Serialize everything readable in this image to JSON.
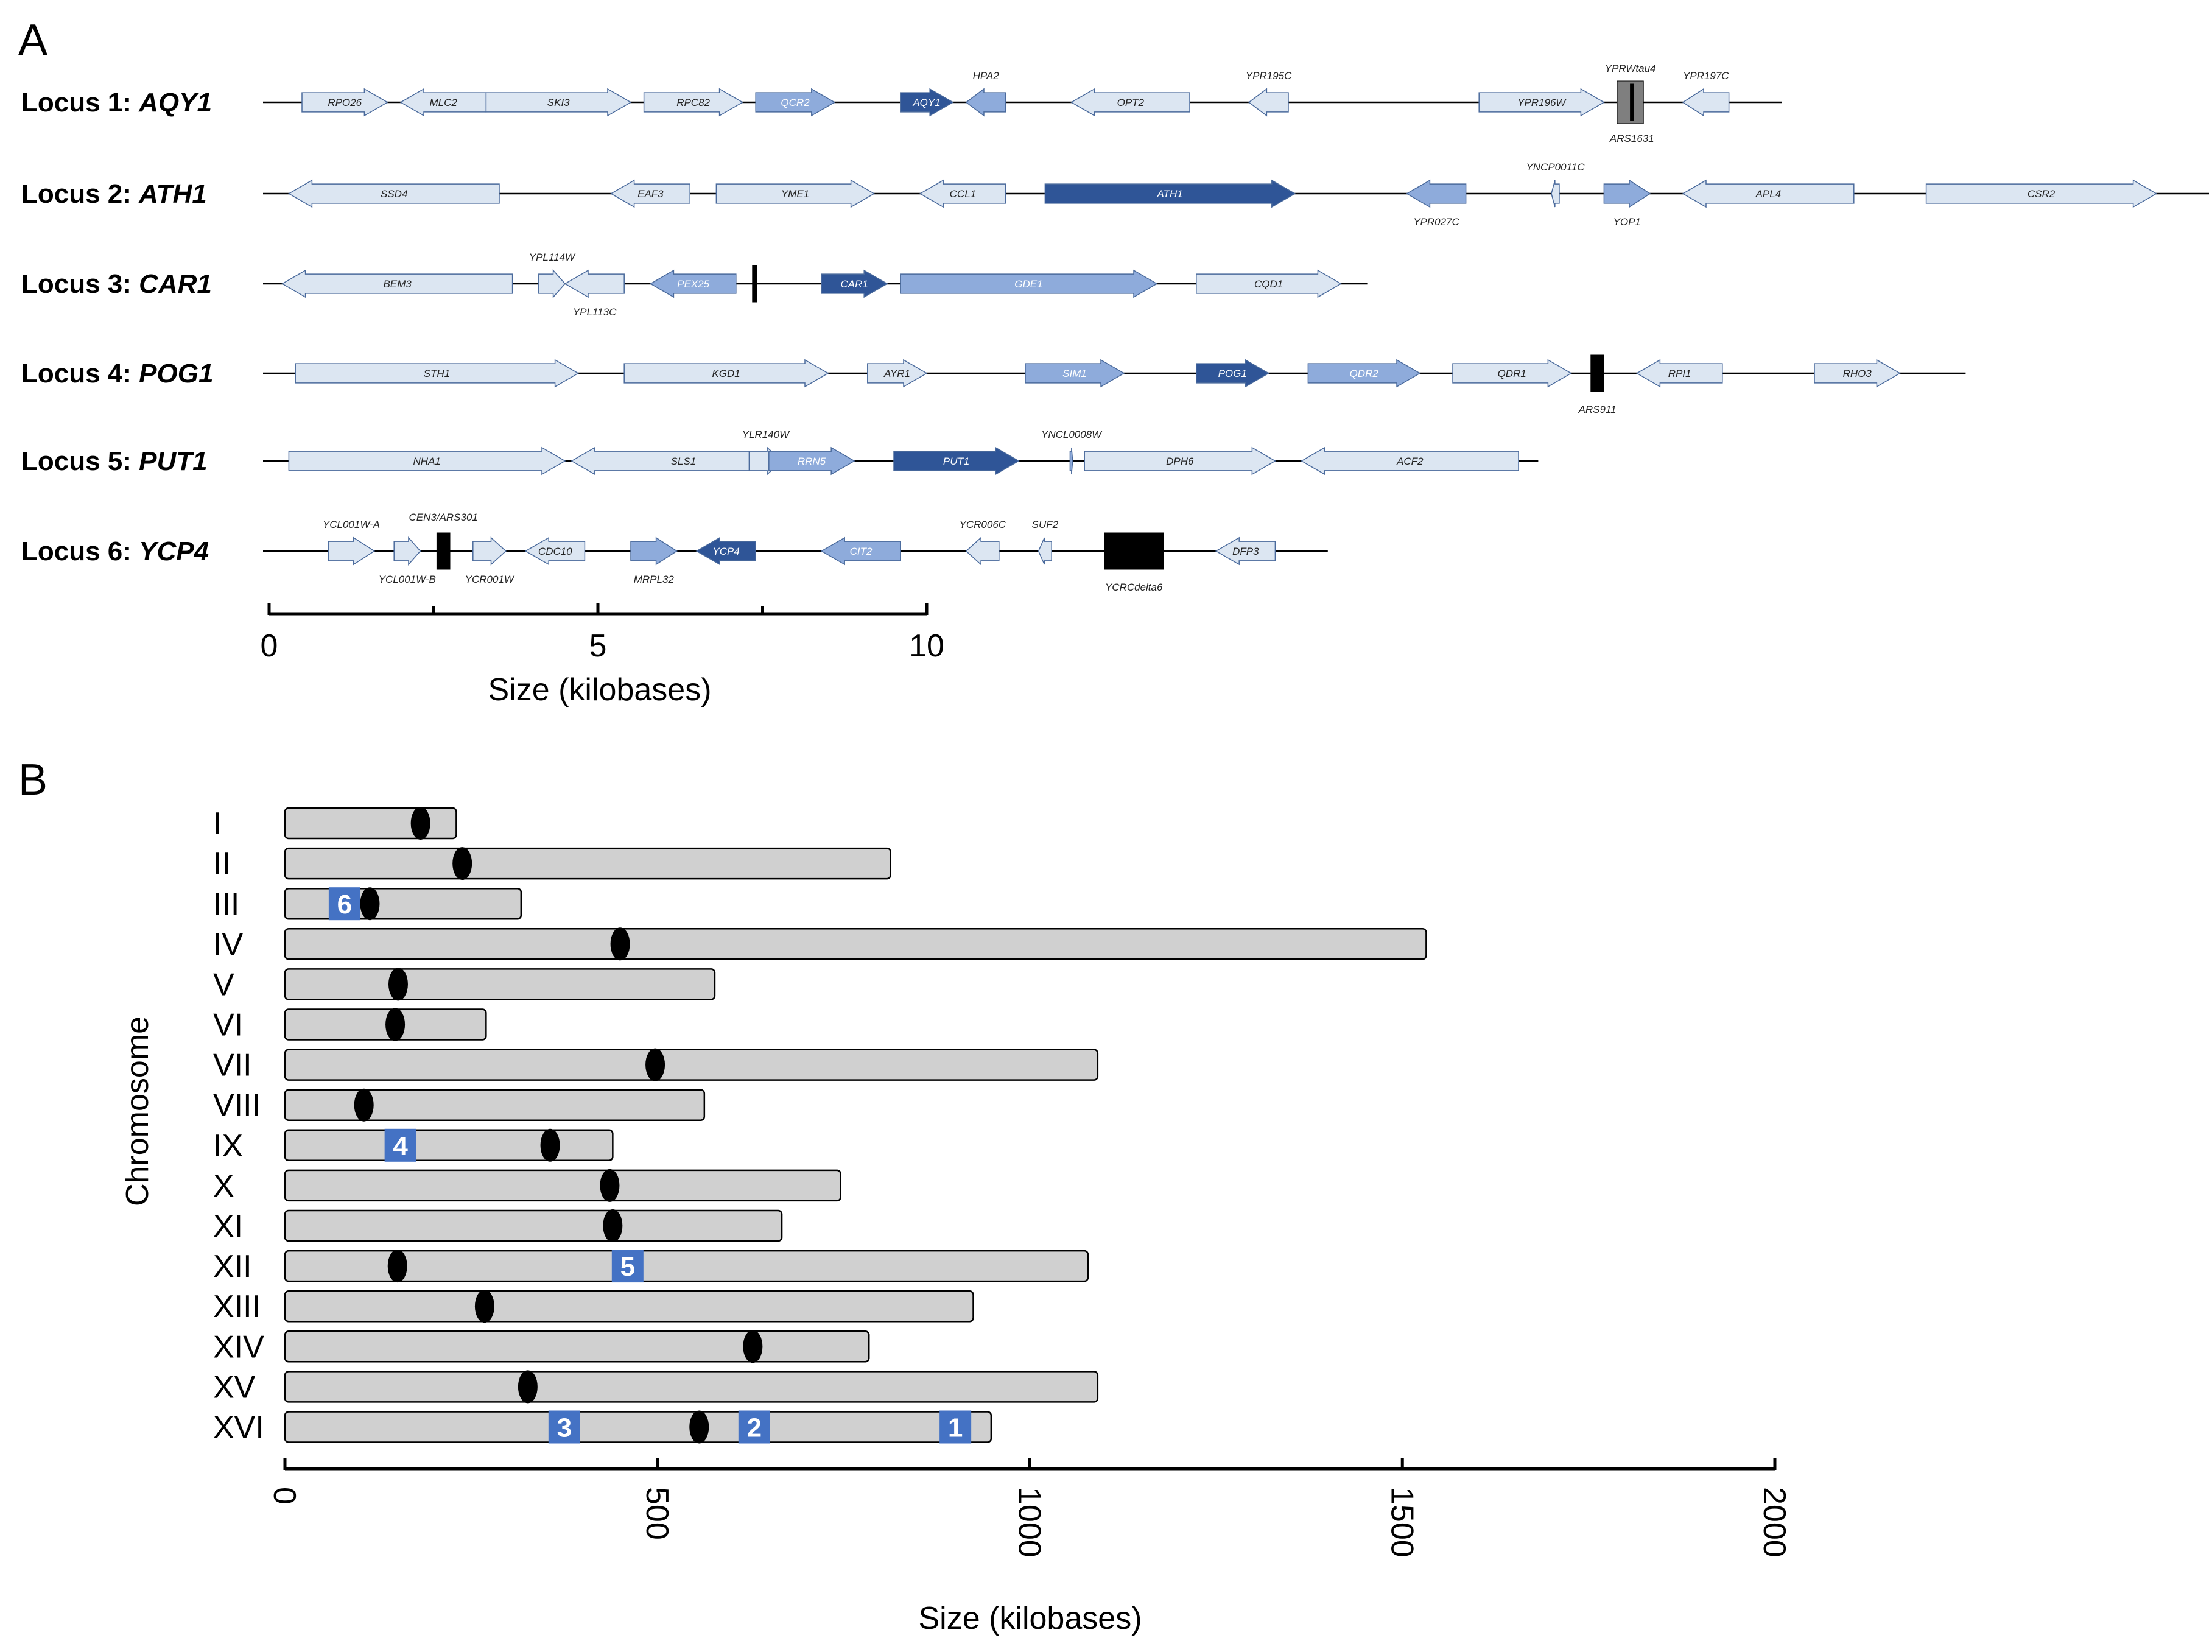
{
  "panel_a": {
    "label": "A",
    "colors": {
      "light": "#dce6f2",
      "mid": "#8eabdb",
      "dark": "#2f5597",
      "black": "#000000",
      "gray": "#7f7f7f"
    },
    "loci": [
      {
        "id": "l1",
        "prefix": "Locus 1: ",
        "gene": "AQY1",
        "len": 23.0,
        "genes": [
          {
            "name": "RPO26",
            "s": 0.5,
            "e": 1.8,
            "dir": "r",
            "c": "light",
            "lp": "in"
          },
          {
            "name": "MLC2",
            "s": 2.0,
            "e": 3.3,
            "dir": "l",
            "c": "light",
            "lp": "in"
          },
          {
            "name": "SKI3",
            "s": 3.3,
            "e": 5.5,
            "dir": "r",
            "c": "light",
            "lp": "in"
          },
          {
            "name": "RPC82",
            "s": 5.7,
            "e": 7.2,
            "dir": "r",
            "c": "light",
            "lp": "in"
          },
          {
            "name": "QCR2",
            "s": 7.4,
            "e": 8.6,
            "dir": "r",
            "c": "mid",
            "lp": "in"
          },
          {
            "name": "AQY1",
            "s": 9.6,
            "e": 10.4,
            "dir": "r",
            "c": "dark",
            "lp": "in"
          },
          {
            "name": "HPA2",
            "s": 10.6,
            "e": 11.2,
            "dir": "l",
            "c": "mid",
            "lp": "above"
          },
          {
            "name": "OPT2",
            "s": 12.2,
            "e": 14.0,
            "dir": "l",
            "c": "light",
            "lp": "in"
          },
          {
            "name": "YPR195C",
            "s": 14.9,
            "e": 15.5,
            "dir": "l",
            "c": "light",
            "lp": "above"
          },
          {
            "name": "YPR196W",
            "s": 18.4,
            "e": 20.3,
            "dir": "r",
            "c": "light",
            "lp": "in"
          },
          {
            "name": "YPR197C",
            "s": 21.5,
            "e": 22.2,
            "dir": "l",
            "c": "light",
            "lp": "above"
          }
        ],
        "features": [
          {
            "name": "YPRWtau4",
            "s": 20.5,
            "e": 20.9,
            "c": "gray",
            "lp": "above"
          },
          {
            "name": "ARS1631",
            "s": 20.7,
            "e": 20.75,
            "c": "black",
            "lp": "below"
          }
        ]
      },
      {
        "id": "l2",
        "prefix": "Locus 2: ",
        "gene": "ATH1",
        "len": 29.5,
        "genes": [
          {
            "name": "SSD4",
            "s": 0.3,
            "e": 3.5,
            "dir": "l",
            "c": "light",
            "lp": "in"
          },
          {
            "name": "EAF3",
            "s": 5.2,
            "e": 6.4,
            "dir": "l",
            "c": "light",
            "lp": "in"
          },
          {
            "name": "YME1",
            "s": 6.8,
            "e": 9.2,
            "dir": "r",
            "c": "light",
            "lp": "in"
          },
          {
            "name": "CCL1",
            "s": 9.9,
            "e": 11.2,
            "dir": "l",
            "c": "light",
            "lp": "in"
          },
          {
            "name": "ATH1",
            "s": 11.8,
            "e": 15.6,
            "dir": "r",
            "c": "dark",
            "lp": "in"
          },
          {
            "name": "YPR027C",
            "s": 17.3,
            "e": 18.2,
            "dir": "l",
            "c": "mid",
            "lp": "below"
          },
          {
            "name": "YNCP0011C",
            "s": 19.5,
            "e": 19.62,
            "dir": "l",
            "c": "light",
            "lp": "above"
          },
          {
            "name": "YOP1",
            "s": 20.3,
            "e": 21.0,
            "dir": "r",
            "c": "mid",
            "lp": "below"
          },
          {
            "name": "APL4",
            "s": 21.5,
            "e": 24.1,
            "dir": "l",
            "c": "light",
            "lp": "in"
          },
          {
            "name": "CSR2",
            "s": 25.2,
            "e": 28.7,
            "dir": "r",
            "c": "light",
            "lp": "in"
          }
        ],
        "features": []
      },
      {
        "id": "l3",
        "prefix": "Locus 3: ",
        "gene": "CAR1",
        "len": 16.7,
        "genes": [
          {
            "name": "BEM3",
            "s": 0.2,
            "e": 3.7,
            "dir": "l",
            "c": "light",
            "lp": "in"
          },
          {
            "name": "YPL114W",
            "s": 4.1,
            "e": 4.5,
            "dir": "r",
            "c": "light",
            "lp": "above"
          },
          {
            "name": "YPL113C",
            "s": 4.5,
            "e": 5.4,
            "dir": "l",
            "c": "light",
            "lp": "below"
          },
          {
            "name": "PEX25",
            "s": 5.8,
            "e": 7.1,
            "dir": "l",
            "c": "mid",
            "lp": "in"
          },
          {
            "name": "CAR1",
            "s": 8.4,
            "e": 9.4,
            "dir": "r",
            "c": "dark",
            "lp": "in"
          },
          {
            "name": "GDE1",
            "s": 9.6,
            "e": 13.5,
            "dir": "r",
            "c": "mid",
            "lp": "in"
          },
          {
            "name": "CQD1",
            "s": 14.1,
            "e": 16.3,
            "dir": "r",
            "c": "light",
            "lp": "in"
          }
        ],
        "features": [
          {
            "name": "",
            "s": 7.35,
            "e": 7.42,
            "c": "black",
            "lp": "none"
          }
        ]
      },
      {
        "id": "l4",
        "prefix": "Locus 4: ",
        "gene": "POG1",
        "len": 25.8,
        "genes": [
          {
            "name": "STH1",
            "s": 0.4,
            "e": 4.7,
            "dir": "r",
            "c": "light",
            "lp": "in"
          },
          {
            "name": "KGD1",
            "s": 5.4,
            "e": 8.5,
            "dir": "r",
            "c": "light",
            "lp": "in"
          },
          {
            "name": "AYR1",
            "s": 9.1,
            "e": 10.0,
            "dir": "r",
            "c": "light",
            "lp": "in"
          },
          {
            "name": "SIM1",
            "s": 11.5,
            "e": 13.0,
            "dir": "r",
            "c": "mid",
            "lp": "in"
          },
          {
            "name": "POG1",
            "s": 14.1,
            "e": 15.2,
            "dir": "r",
            "c": "dark",
            "lp": "in"
          },
          {
            "name": "QDR2",
            "s": 15.8,
            "e": 17.5,
            "dir": "r",
            "c": "mid",
            "lp": "in"
          },
          {
            "name": "QDR1",
            "s": 18.0,
            "e": 19.8,
            "dir": "r",
            "c": "light",
            "lp": "in"
          },
          {
            "name": "RPI1",
            "s": 20.8,
            "e": 22.1,
            "dir": "l",
            "c": "light",
            "lp": "in"
          },
          {
            "name": "RHO3",
            "s": 23.5,
            "e": 24.8,
            "dir": "r",
            "c": "light",
            "lp": "in"
          }
        ],
        "features": [
          {
            "name": "ARS911",
            "s": 20.1,
            "e": 20.3,
            "c": "black",
            "lp": "below"
          }
        ]
      },
      {
        "id": "l5",
        "prefix": "Locus 5: ",
        "gene": "PUT1",
        "len": 19.3,
        "genes": [
          {
            "name": "NHA1",
            "s": 0.3,
            "e": 4.5,
            "dir": "r",
            "c": "light",
            "lp": "in"
          },
          {
            "name": "SLS1",
            "s": 4.6,
            "e": 8.0,
            "dir": "l",
            "c": "light",
            "lp": "in"
          },
          {
            "name": "YLR140W",
            "s": 7.3,
            "e": 7.8,
            "dir": "r",
            "c": "light",
            "lp": "above"
          },
          {
            "name": "RRN5",
            "s": 7.6,
            "e": 8.9,
            "dir": "r",
            "c": "mid",
            "lp": "in"
          },
          {
            "name": "PUT1",
            "s": 9.5,
            "e": 11.4,
            "dir": "r",
            "c": "dark",
            "lp": "in"
          },
          {
            "name": "YNCL0008W",
            "s": 12.18,
            "e": 12.22,
            "dir": "r",
            "c": "mid",
            "lp": "above"
          },
          {
            "name": "DPH6",
            "s": 12.4,
            "e": 15.3,
            "dir": "r",
            "c": "light",
            "lp": "in"
          },
          {
            "name": "ACF2",
            "s": 15.7,
            "e": 19.0,
            "dir": "l",
            "c": "light",
            "lp": "in"
          }
        ],
        "features": []
      },
      {
        "id": "l6",
        "prefix": "Locus 6: ",
        "gene": "YCP4",
        "len": 16.1,
        "genes": [
          {
            "name": "YCL001W-A",
            "s": 0.9,
            "e": 1.6,
            "dir": "r",
            "c": "light",
            "lp": "above"
          },
          {
            "name": "YCL001W-B",
            "s": 1.9,
            "e": 2.3,
            "dir": "r",
            "c": "light",
            "lp": "below"
          },
          {
            "name": "YCR001W",
            "s": 3.1,
            "e": 3.6,
            "dir": "r",
            "c": "light",
            "lp": "below"
          },
          {
            "name": "CDC10",
            "s": 3.9,
            "e": 4.8,
            "dir": "l",
            "c": "light",
            "lp": "in"
          },
          {
            "name": "MRPL32",
            "s": 5.5,
            "e": 6.2,
            "dir": "r",
            "c": "mid",
            "lp": "below"
          },
          {
            "name": "YCP4",
            "s": 6.5,
            "e": 7.4,
            "dir": "l",
            "c": "dark",
            "lp": "in"
          },
          {
            "name": "CIT2",
            "s": 8.4,
            "e": 9.6,
            "dir": "l",
            "c": "mid",
            "lp": "in"
          },
          {
            "name": "YCR006C",
            "s": 10.6,
            "e": 11.1,
            "dir": "l",
            "c": "light",
            "lp": "above"
          },
          {
            "name": "SUF2",
            "s": 11.7,
            "e": 11.9,
            "dir": "l",
            "c": "light",
            "lp": "above"
          },
          {
            "name": "DFP3",
            "s": 14.4,
            "e": 15.3,
            "dir": "l",
            "c": "light",
            "lp": "in"
          }
        ],
        "features": [
          {
            "name": "CEN3/ARS301",
            "s": 2.55,
            "e": 2.75,
            "c": "black",
            "lp": "above"
          },
          {
            "name": "YCRCdelta6",
            "s": 12.7,
            "e": 13.6,
            "c": "black",
            "lp": "below"
          }
        ]
      }
    ],
    "axis": {
      "ticks": [
        0,
        5,
        10
      ],
      "minor": [
        2.5,
        7.5
      ],
      "max": 10,
      "title": "Size (kilobases)"
    }
  },
  "panel_b": {
    "label": "B",
    "ylabel": "Chromosome",
    "xlabel": "Size (kilobases)",
    "ticks": [
      0,
      500,
      1000,
      1500,
      2000
    ],
    "chromosomes": [
      {
        "name": "I",
        "len": 230,
        "cen": 182,
        "loci": []
      },
      {
        "name": "II",
        "len": 813,
        "cen": 238,
        "loci": []
      },
      {
        "name": "III",
        "len": 317,
        "cen": 114,
        "loci": [
          {
            "n": "6",
            "p": 80
          }
        ]
      },
      {
        "name": "IV",
        "len": 1532,
        "cen": 450,
        "loci": []
      },
      {
        "name": "V",
        "len": 577,
        "cen": 152,
        "loci": []
      },
      {
        "name": "VI",
        "len": 270,
        "cen": 148,
        "loci": []
      },
      {
        "name": "VII",
        "len": 1091,
        "cen": 497,
        "loci": []
      },
      {
        "name": "VIII",
        "len": 563,
        "cen": 106,
        "loci": []
      },
      {
        "name": "IX",
        "len": 440,
        "cen": 356,
        "loci": [
          {
            "n": "4",
            "p": 155
          }
        ]
      },
      {
        "name": "X",
        "len": 746,
        "cen": 436,
        "loci": []
      },
      {
        "name": "XI",
        "len": 667,
        "cen": 440,
        "loci": []
      },
      {
        "name": "XII",
        "len": 1078,
        "cen": 151,
        "loci": [
          {
            "n": "5",
            "p": 460
          }
        ]
      },
      {
        "name": "XIII",
        "len": 924,
        "cen": 268,
        "loci": []
      },
      {
        "name": "XIV",
        "len": 784,
        "cen": 628,
        "loci": []
      },
      {
        "name": "XV",
        "len": 1091,
        "cen": 326,
        "loci": []
      },
      {
        "name": "XVI",
        "len": 948,
        "cen": 556,
        "loci": [
          {
            "n": "3",
            "p": 375
          },
          {
            "n": "2",
            "p": 630
          },
          {
            "n": "1",
            "p": 900
          }
        ]
      }
    ]
  }
}
